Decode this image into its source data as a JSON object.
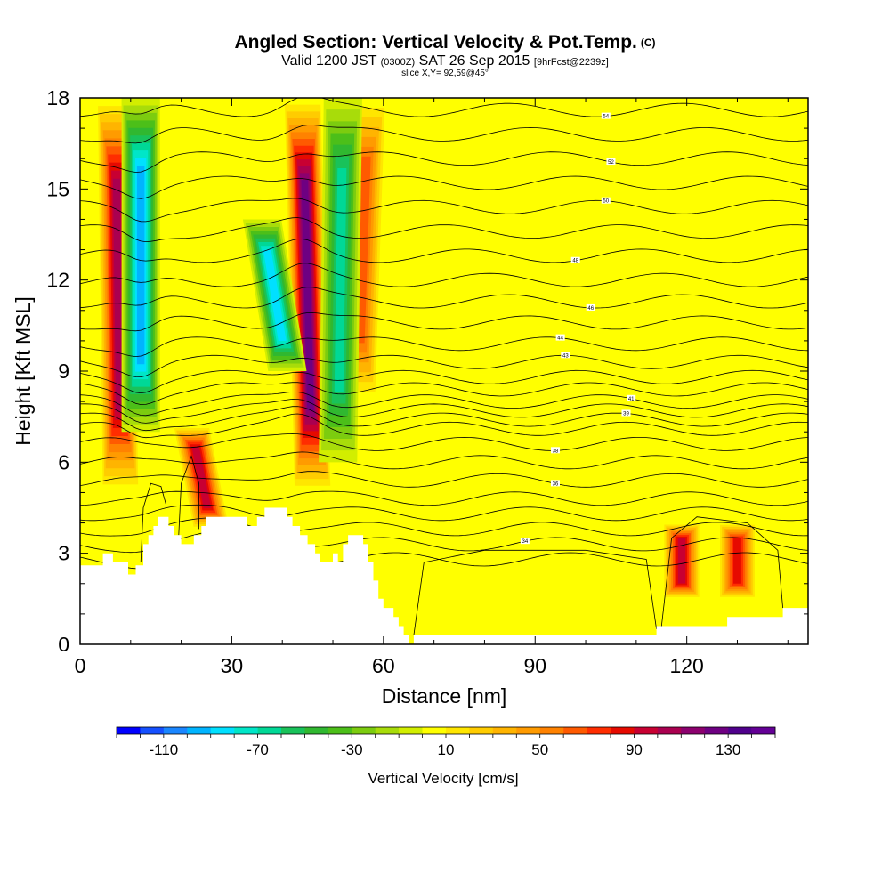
{
  "title": {
    "main": "Angled Section: Vertical Velocity & Pot.Temp.",
    "main_suffix": "(C)",
    "valid_a": "Valid 1200 JST",
    "valid_b": "(0300Z)",
    "valid_c": "SAT 26 Sep 2015",
    "valid_d": "[9hrFcst@2239z]",
    "slice": "slice X,Y= 92,59@45°"
  },
  "chart_data": {
    "type": "contour",
    "xlabel": "Distance [nm]",
    "ylabel": "Height [Kft MSL]",
    "xlim": [
      0,
      144
    ],
    "ylim": [
      0,
      18
    ],
    "x_ticks": [
      0,
      30,
      60,
      90,
      120
    ],
    "y_ticks": [
      0,
      3,
      6,
      9,
      12,
      15,
      18
    ],
    "colorbar": {
      "label": "Vertical Velocity [cm/s]",
      "range": [
        -130,
        150
      ],
      "step": 10,
      "tick_values": [
        -110,
        -70,
        -30,
        10,
        50,
        90,
        130
      ],
      "tick_labels": [
        "-110",
        "-70",
        "-30",
        "10",
        "50",
        "90",
        "130"
      ],
      "colors": [
        "#0000ff",
        "#1550ff",
        "#1a86ff",
        "#00b4ff",
        "#00e0ff",
        "#00e6c8",
        "#00d896",
        "#19c25a",
        "#30b830",
        "#4cbf19",
        "#7ccc0f",
        "#a8dc0a",
        "#d2ee00",
        "#ffff00",
        "#ffe600",
        "#ffcc00",
        "#ffb400",
        "#ff9b00",
        "#ff8200",
        "#ff5a00",
        "#ff2d00",
        "#e60a00",
        "#c80032",
        "#aa0050",
        "#8c006e",
        "#6e0082",
        "#50008c",
        "#640096"
      ]
    },
    "updraft_bands": [
      {
        "x_bottom": 8,
        "x_top": 7,
        "y_from": 5,
        "y_to": 18,
        "peak": 100
      },
      {
        "x_bottom": 26,
        "x_top": 22,
        "y_from": 3.8,
        "y_to": 7.2,
        "peak": 90
      },
      {
        "x_bottom": 46,
        "x_top": 44,
        "y_from": 5,
        "y_to": 18,
        "peak": 120
      },
      {
        "x_bottom": 55,
        "x_top": 57,
        "y_from": 8,
        "y_to": 18,
        "peak": 60
      },
      {
        "x_bottom": 119,
        "x_top": 119,
        "y_from": 1.5,
        "y_to": 4,
        "peak": 90
      },
      {
        "x_bottom": 130,
        "x_top": 130,
        "y_from": 1.5,
        "y_to": 4,
        "peak": 80
      }
    ],
    "downdraft_bands": [
      {
        "x_bottom": 12,
        "x_top": 12,
        "y_from": 7,
        "y_to": 18,
        "peak": -90
      },
      {
        "x_bottom": 41,
        "x_top": 36,
        "y_from": 9,
        "y_to": 14,
        "peak": -80
      },
      {
        "x_bottom": 51,
        "x_top": 52,
        "y_from": 6,
        "y_to": 18,
        "peak": -60
      }
    ],
    "terrain": [
      [
        0,
        2.6
      ],
      [
        4.5,
        2.6
      ],
      [
        4.5,
        3.0
      ],
      [
        6.5,
        3.0
      ],
      [
        6.5,
        2.7
      ],
      [
        9.5,
        2.7
      ],
      [
        9.5,
        2.3
      ],
      [
        11,
        2.3
      ],
      [
        11,
        2.6
      ],
      [
        12.5,
        2.6
      ],
      [
        12.5,
        3.3
      ],
      [
        13.5,
        3.3
      ],
      [
        13.5,
        3.6
      ],
      [
        14.5,
        3.6
      ],
      [
        14.5,
        3.9
      ],
      [
        15.5,
        3.9
      ],
      [
        15.5,
        4.2
      ],
      [
        17.5,
        4.2
      ],
      [
        17.5,
        3.9
      ],
      [
        18.5,
        3.9
      ],
      [
        18.5,
        3.6
      ],
      [
        20,
        3.6
      ],
      [
        20,
        3.3
      ],
      [
        22.5,
        3.3
      ],
      [
        22.5,
        3.6
      ],
      [
        24,
        3.6
      ],
      [
        24,
        3.9
      ],
      [
        25,
        3.9
      ],
      [
        25,
        4.2
      ],
      [
        33,
        4.2
      ],
      [
        33,
        3.9
      ],
      [
        35,
        3.9
      ],
      [
        35,
        4.2
      ],
      [
        36.5,
        4.2
      ],
      [
        36.5,
        4.5
      ],
      [
        41,
        4.5
      ],
      [
        41,
        4.2
      ],
      [
        42,
        4.2
      ],
      [
        42,
        3.9
      ],
      [
        43.5,
        3.9
      ],
      [
        43.5,
        3.6
      ],
      [
        45,
        3.6
      ],
      [
        45,
        3.3
      ],
      [
        46.5,
        3.3
      ],
      [
        46.5,
        3.0
      ],
      [
        47.5,
        3.0
      ],
      [
        47.5,
        2.7
      ],
      [
        50,
        2.7
      ],
      [
        50,
        3.0
      ],
      [
        51,
        3.0
      ],
      [
        51,
        2.7
      ],
      [
        52,
        2.7
      ],
      [
        52,
        3.3
      ],
      [
        53,
        3.3
      ],
      [
        53,
        3.6
      ],
      [
        56,
        3.6
      ],
      [
        56,
        3.3
      ],
      [
        57,
        3.3
      ],
      [
        57,
        2.7
      ],
      [
        58,
        2.7
      ],
      [
        58,
        2.1
      ],
      [
        59,
        2.1
      ],
      [
        59,
        1.5
      ],
      [
        60,
        1.5
      ],
      [
        60,
        1.2
      ],
      [
        62,
        1.2
      ],
      [
        62,
        0.9
      ],
      [
        63,
        0.9
      ],
      [
        63,
        0.6
      ],
      [
        64,
        0.6
      ],
      [
        64,
        0.3
      ],
      [
        65,
        0.3
      ],
      [
        65,
        0.0
      ],
      [
        66,
        0.0
      ],
      [
        66,
        0.3
      ],
      [
        114,
        0.3
      ],
      [
        114,
        0.6
      ],
      [
        128,
        0.6
      ],
      [
        128,
        0.9
      ],
      [
        139,
        0.9
      ],
      [
        139,
        1.2
      ],
      [
        144,
        1.2
      ]
    ],
    "theta_contours": [
      {
        "start": 2.8,
        "label": "",
        "label_x": null
      },
      {
        "start": 3.3,
        "label": "34",
        "label_x": 88
      },
      {
        "start": 3.8,
        "label": "",
        "label_x": null
      },
      {
        "start": 4.3,
        "label": "",
        "label_x": null
      },
      {
        "start": 4.8,
        "label": "",
        "label_x": null
      },
      {
        "start": 5.4,
        "label": "36",
        "label_x": 94
      },
      {
        "start": 6.0,
        "label": "",
        "label_x": null
      },
      {
        "start": 6.6,
        "label": "38",
        "label_x": 94
      },
      {
        "start": 7.1,
        "label": "",
        "label_x": null
      },
      {
        "start": 7.4,
        "label": "39",
        "label_x": 108
      },
      {
        "start": 7.7,
        "label": "",
        "label_x": null
      },
      {
        "start": 8.0,
        "label": "41",
        "label_x": 109
      },
      {
        "start": 8.4,
        "label": "",
        "label_x": null
      },
      {
        "start": 8.8,
        "label": "",
        "label_x": null
      },
      {
        "start": 9.3,
        "label": "43",
        "label_x": 96
      },
      {
        "start": 9.9,
        "label": "44",
        "label_x": 95
      },
      {
        "start": 10.6,
        "label": "",
        "label_x": null
      },
      {
        "start": 11.3,
        "label": "46",
        "label_x": 101
      },
      {
        "start": 12.0,
        "label": "",
        "label_x": null
      },
      {
        "start": 12.8,
        "label": "48",
        "label_x": 98
      },
      {
        "start": 13.6,
        "label": "",
        "label_x": null
      },
      {
        "start": 14.4,
        "label": "50",
        "label_x": 104
      },
      {
        "start": 15.2,
        "label": "",
        "label_x": null
      },
      {
        "start": 16.0,
        "label": "52",
        "label_x": 105
      },
      {
        "start": 16.8,
        "label": "",
        "label_x": null
      },
      {
        "start": 17.6,
        "label": "54",
        "label_x": 104
      }
    ],
    "zero_contours": [
      {
        "name": "low-level-updraft-boundary",
        "points": [
          [
            66,
            0.3
          ],
          [
            68,
            2.7
          ],
          [
            80,
            3.1
          ],
          [
            100,
            3.1
          ],
          [
            112,
            2.8
          ],
          [
            114,
            0.5
          ]
        ]
      },
      {
        "name": "right-updraft-boundary",
        "points": [
          [
            115,
            0.6
          ],
          [
            117,
            3.5
          ],
          [
            122,
            4.2
          ],
          [
            132,
            4.0
          ],
          [
            138,
            3.1
          ],
          [
            139,
            1.2
          ]
        ]
      },
      {
        "name": "left-lobe-1",
        "points": [
          [
            12,
            2.7
          ],
          [
            12.5,
            4.5
          ],
          [
            14,
            5.3
          ],
          [
            16,
            5.2
          ],
          [
            17,
            4.6
          ]
        ]
      },
      {
        "name": "left-lobe-2",
        "points": [
          [
            19.5,
            3.6
          ],
          [
            20,
            5.3
          ],
          [
            22,
            6.2
          ],
          [
            23.5,
            5.3
          ],
          [
            23.5,
            3.8
          ]
        ]
      }
    ]
  }
}
